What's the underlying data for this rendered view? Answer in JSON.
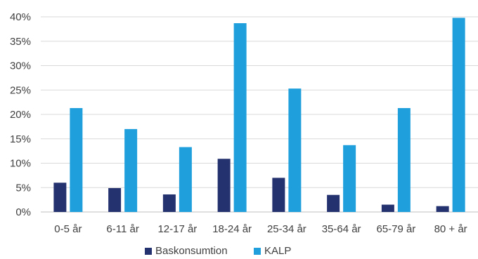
{
  "chart_data": {
    "type": "bar",
    "title": "",
    "xlabel": "",
    "ylabel": "",
    "categories": [
      "0-5 år",
      "6-11 år",
      "12-17 år",
      "18-24 år",
      "25-34 år",
      "35-64 år",
      "65-79 år",
      "80 + år"
    ],
    "series": [
      {
        "name": "Baskonsumtion",
        "color": "#243270",
        "values": [
          6.0,
          4.9,
          3.6,
          10.9,
          7.0,
          3.5,
          1.5,
          1.2
        ]
      },
      {
        "name": "KALP",
        "color": "#1fa0dd",
        "values": [
          21.3,
          17.0,
          13.3,
          38.7,
          25.3,
          13.7,
          21.3,
          39.8
        ]
      }
    ],
    "ylim": [
      0,
      40
    ],
    "yticks": [
      "0%",
      "5%",
      "10%",
      "15%",
      "20%",
      "25%",
      "30%",
      "35%",
      "40%"
    ],
    "grid": true,
    "legend_position": "bottom"
  }
}
